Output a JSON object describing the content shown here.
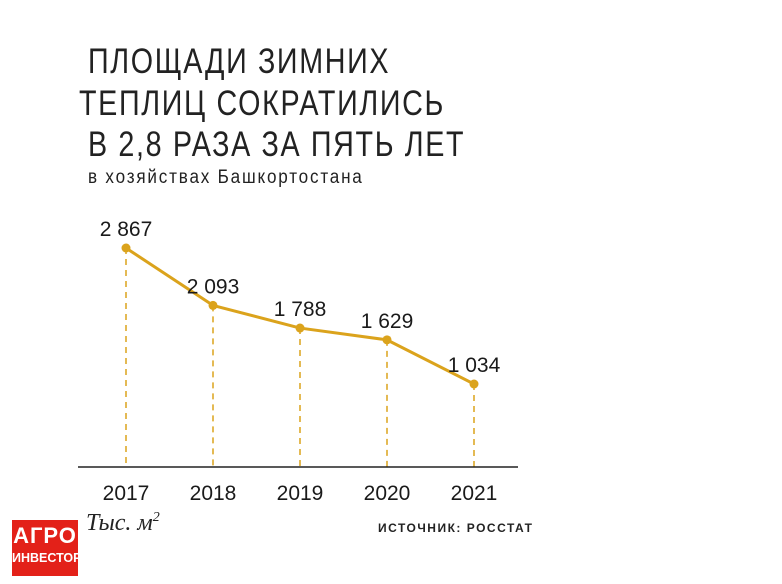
{
  "header": {
    "title_lines": [
      "ПЛОЩАДИ ЗИМНИХ",
      "ТЕПЛИЦ СОКРАТИЛИСЬ",
      "В 2,8 РАЗА ЗА ПЯТЬ ЛЕТ"
    ],
    "subtitle": "в хозяйствах Башкортостана"
  },
  "footer": {
    "unit_text": "Тыс. м",
    "unit_power": "2",
    "source": "ИСТОЧНИК: РОССТАТ",
    "logo_line1": "АГРО",
    "logo_line2": "ИНВЕСТОР"
  },
  "colors": {
    "series": "#dba31c",
    "axis": "#222222",
    "logo_bg": "#e32119"
  },
  "chart_data": {
    "type": "line",
    "categories": [
      "2017",
      "2018",
      "2019",
      "2020",
      "2021"
    ],
    "values": [
      2867,
      2093,
      1788,
      1629,
      1034
    ],
    "value_labels": [
      "2 867",
      "2 093",
      "1 788",
      "1 629",
      "1 034"
    ],
    "ylabel": "Тыс. м2",
    "grid": false,
    "drop_lines": "dashed"
  }
}
